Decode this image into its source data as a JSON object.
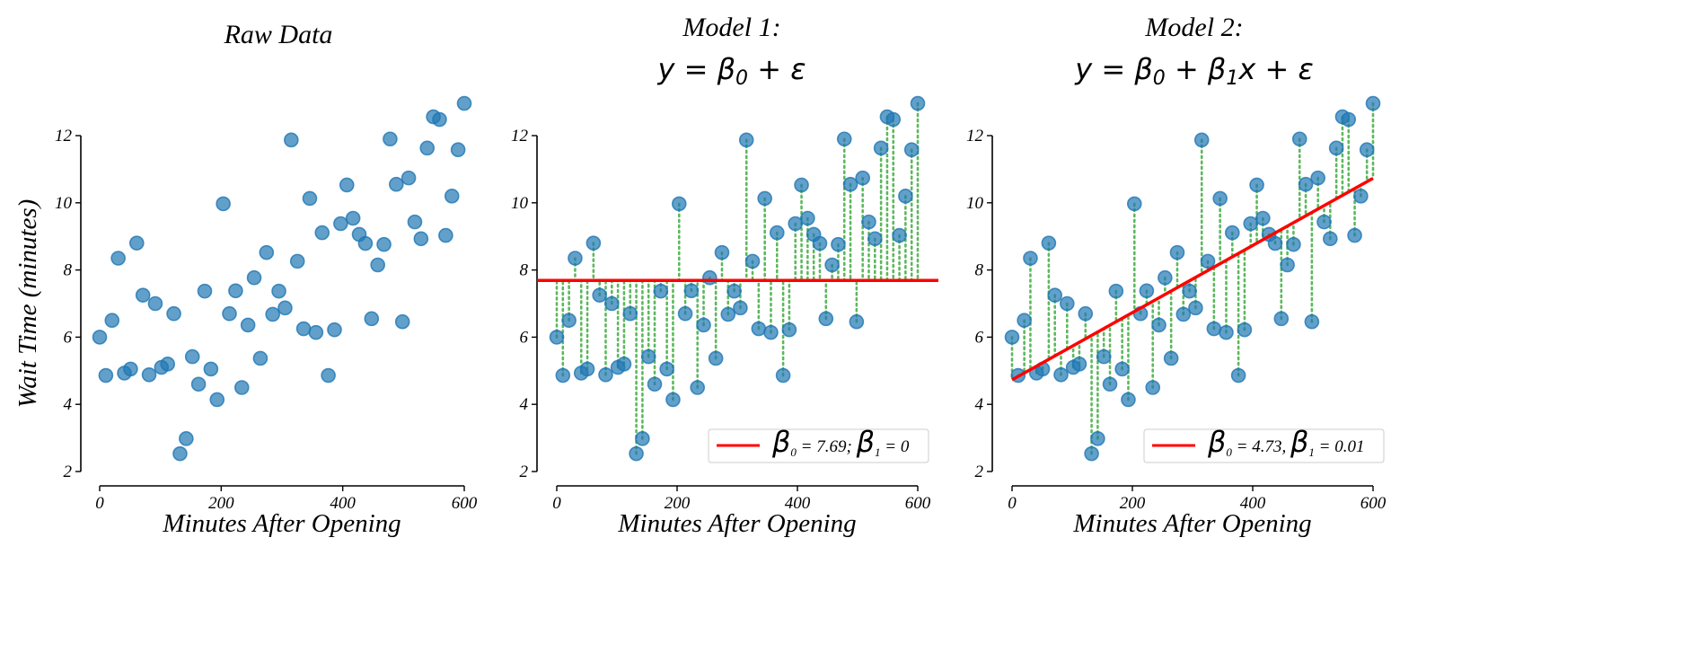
{
  "chart_data": {
    "type": "scatter",
    "x_range": [
      0,
      600
    ],
    "n_points": 60,
    "y": [
      6.0,
      4.86,
      6.5,
      8.35,
      4.93,
      5.05,
      8.8,
      7.25,
      4.88,
      7.0,
      5.1,
      5.2,
      6.7,
      2.53,
      2.98,
      5.42,
      4.6,
      7.37,
      5.05,
      4.14,
      9.97,
      6.7,
      7.38,
      4.5,
      6.36,
      7.77,
      5.37,
      8.52,
      6.68,
      7.37,
      6.87,
      11.87,
      8.26,
      6.25,
      10.13,
      6.14,
      9.11,
      4.86,
      6.22,
      9.38,
      10.53,
      9.54,
      9.06,
      8.79,
      6.55,
      8.15,
      8.76,
      11.9,
      10.55,
      6.46,
      10.74,
      9.43,
      8.93,
      11.63,
      12.56,
      12.48,
      9.03,
      10.2,
      11.58,
      12.96
    ],
    "ylim": [
      2,
      12
    ],
    "yticks": [
      "2",
      "4",
      "6",
      "8",
      "10",
      "12"
    ],
    "xticks": [
      "0",
      "200",
      "400",
      "600"
    ],
    "xlabel": "Minutes After Opening",
    "ylabel": "Wait Time (minutes)",
    "colors": {
      "points": "#1f77b4",
      "fit": "#ff0000",
      "residual": "#5cb85c"
    },
    "panels": [
      {
        "title": "Raw Data"
      },
      {
        "title": "Model 1:",
        "formula_parts": [
          "y = β",
          "0",
          " + ε"
        ],
        "intercept": 7.69,
        "slope": 0,
        "legend": {
          "b0": "β",
          "b0sub": "0",
          "text1": " = 7.69; ",
          "b1": "β",
          "b1sub": "1",
          "text2": " = 0"
        }
      },
      {
        "title": "Model 2:",
        "formula_parts": [
          "y = β",
          "0",
          " + β",
          "1",
          "x + ε"
        ],
        "intercept": 4.73,
        "slope": 0.01,
        "legend": {
          "b0": "β",
          "b0sub": "0",
          "text1": " = 4.73, ",
          "b1": "β",
          "b1sub": "1",
          "text2": " = 0.01"
        }
      }
    ]
  }
}
